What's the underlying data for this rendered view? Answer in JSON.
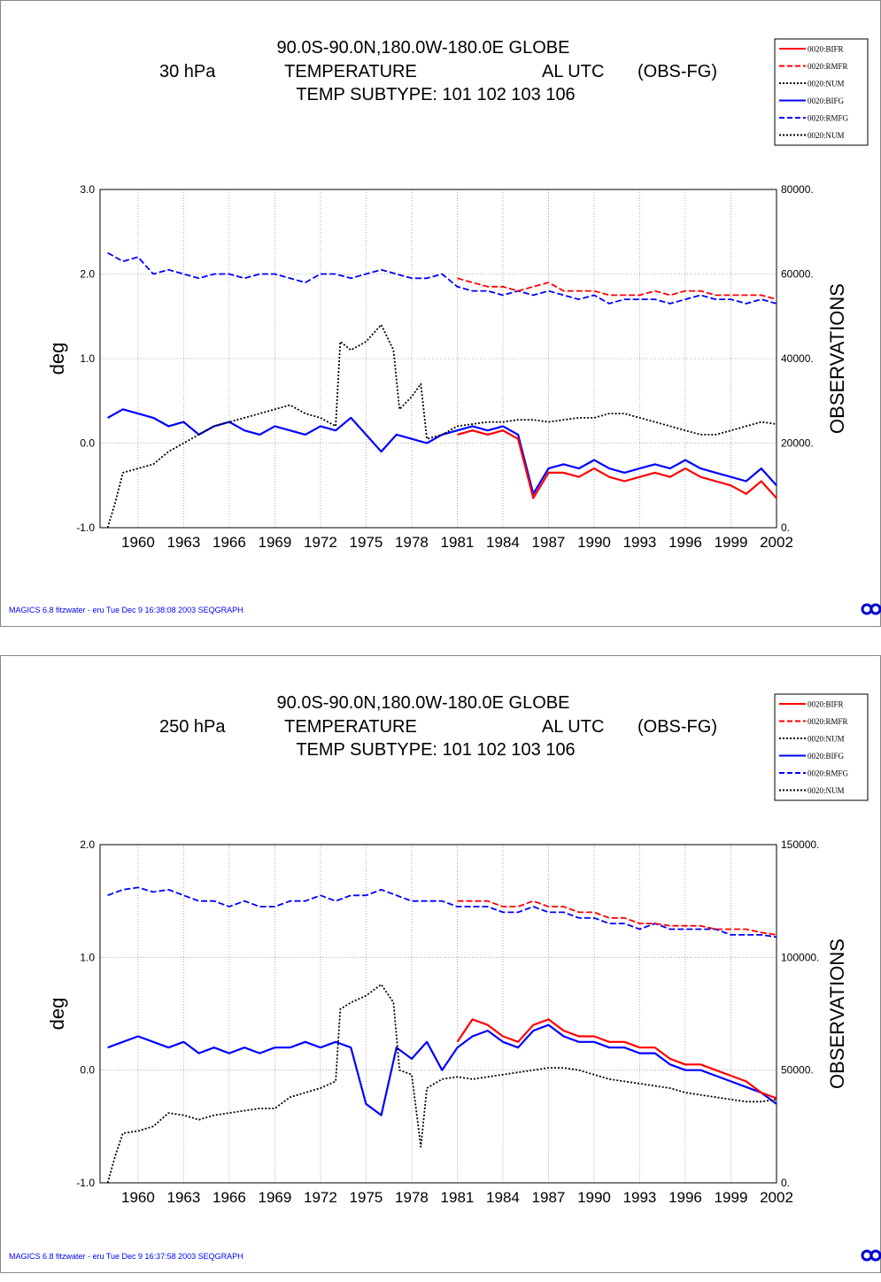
{
  "colors": {
    "bifr": "#ff0000",
    "rmfr": "#ff0000",
    "bifg": "#0000ff",
    "rmfg": "#0000ff",
    "num": "#000000",
    "footer": "#0000ff"
  },
  "icons": {
    "logo": "ecmwf-logo-icon"
  },
  "chart_data": [
    {
      "type": "line",
      "title_lines": [
        "90.0S-90.0N,180.0W-180.0E  GLOBE",
        "TEMPERATURE",
        "TEMP    SUBTYPE: 101 102 103 106"
      ],
      "level": "30 hPa",
      "time": "AL UTC",
      "diff": "(OBS-FG)",
      "ylabel": "deg",
      "ylabel_right": "OBSERVATIONS",
      "ylim": [
        -1.0,
        3.0
      ],
      "y_ticks": [
        "-1.0",
        "0.0",
        "1.0",
        "2.0",
        "3.0"
      ],
      "ylim_right": [
        0,
        80000
      ],
      "y_ticks_right": [
        "0.",
        "20000.",
        "40000.",
        "60000.",
        "80000."
      ],
      "xlim": [
        1957.5,
        2002
      ],
      "x_ticks": [
        "1960",
        "1963",
        "1966",
        "1969",
        "1972",
        "1975",
        "1978",
        "1981",
        "1984",
        "1987",
        "1990",
        "1993",
        "1996",
        "1999",
        "2002"
      ],
      "grid": "dotted",
      "legend_position": "top-right",
      "legend": [
        "0020:BIFR",
        "0020:RMFR",
        "0020:NUM",
        "0020:BIFG",
        "0020:RMFG",
        "0020:NUM"
      ],
      "footer": "MAGICS 6.8 fitzwater - eru Tue Dec  9 16:38:08 2003 SEQGRAPH",
      "series": [
        {
          "name": "0020:BIFG",
          "axis": "left",
          "style": "solid",
          "color": "bifg",
          "x": [
            1958,
            1959,
            1960,
            1961,
            1962,
            1963,
            1964,
            1965,
            1966,
            1967,
            1968,
            1969,
            1970,
            1971,
            1972,
            1973,
            1974,
            1975,
            1976,
            1977,
            1978,
            1979,
            1980,
            1981,
            1982,
            1983,
            1984,
            1985,
            1986,
            1987,
            1988,
            1989,
            1990,
            1991,
            1992,
            1993,
            1994,
            1995,
            1996,
            1997,
            1998,
            1999,
            2000,
            2001,
            2002
          ],
          "y": [
            0.3,
            0.4,
            0.35,
            0.3,
            0.2,
            0.25,
            0.1,
            0.2,
            0.25,
            0.15,
            0.1,
            0.2,
            0.15,
            0.1,
            0.2,
            0.15,
            0.3,
            0.1,
            -0.1,
            0.1,
            0.05,
            0.0,
            0.1,
            0.15,
            0.2,
            0.15,
            0.2,
            0.1,
            -0.6,
            -0.3,
            -0.25,
            -0.3,
            -0.2,
            -0.3,
            -0.35,
            -0.3,
            -0.25,
            -0.3,
            -0.2,
            -0.3,
            -0.35,
            -0.4,
            -0.45,
            -0.3,
            -0.5
          ]
        },
        {
          "name": "0020:BIFR",
          "axis": "left",
          "style": "solid",
          "color": "bifr",
          "x": [
            1981,
            1982,
            1983,
            1984,
            1985,
            1986,
            1987,
            1988,
            1989,
            1990,
            1991,
            1992,
            1993,
            1994,
            1995,
            1996,
            1997,
            1998,
            1999,
            2000,
            2001,
            2002
          ],
          "y": [
            0.1,
            0.15,
            0.1,
            0.15,
            0.05,
            -0.65,
            -0.35,
            -0.35,
            -0.4,
            -0.3,
            -0.4,
            -0.45,
            -0.4,
            -0.35,
            -0.4,
            -0.3,
            -0.4,
            -0.45,
            -0.5,
            -0.6,
            -0.45,
            -0.65
          ]
        },
        {
          "name": "0020:RMFG",
          "axis": "left",
          "style": "dashed",
          "color": "rmfg",
          "x": [
            1958,
            1959,
            1960,
            1961,
            1962,
            1963,
            1964,
            1965,
            1966,
            1967,
            1968,
            1969,
            1970,
            1971,
            1972,
            1973,
            1974,
            1975,
            1976,
            1977,
            1978,
            1979,
            1980,
            1981,
            1982,
            1983,
            1984,
            1985,
            1986,
            1987,
            1988,
            1989,
            1990,
            1991,
            1992,
            1993,
            1994,
            1995,
            1996,
            1997,
            1998,
            1999,
            2000,
            2001,
            2002
          ],
          "y": [
            2.25,
            2.15,
            2.2,
            2.0,
            2.05,
            2.0,
            1.95,
            2.0,
            2.0,
            1.95,
            2.0,
            2.0,
            1.95,
            1.9,
            2.0,
            2.0,
            1.95,
            2.0,
            2.05,
            2.0,
            1.95,
            1.95,
            2.0,
            1.85,
            1.8,
            1.8,
            1.75,
            1.8,
            1.75,
            1.8,
            1.75,
            1.7,
            1.75,
            1.65,
            1.7,
            1.7,
            1.7,
            1.65,
            1.7,
            1.75,
            1.7,
            1.7,
            1.65,
            1.7,
            1.65
          ]
        },
        {
          "name": "0020:RMFR",
          "axis": "left",
          "style": "dashed",
          "color": "rmfr",
          "x": [
            1981,
            1982,
            1983,
            1984,
            1985,
            1986,
            1987,
            1988,
            1989,
            1990,
            1991,
            1992,
            1993,
            1994,
            1995,
            1996,
            1997,
            1998,
            1999,
            2000,
            2001,
            2002
          ],
          "y": [
            1.95,
            1.9,
            1.85,
            1.85,
            1.8,
            1.85,
            1.9,
            1.8,
            1.8,
            1.8,
            1.75,
            1.75,
            1.75,
            1.8,
            1.75,
            1.8,
            1.8,
            1.75,
            1.75,
            1.75,
            1.75,
            1.7
          ]
        },
        {
          "name": "0020:NUM",
          "axis": "right",
          "style": "dotted",
          "color": "num",
          "x": [
            1958,
            1958.5,
            1959,
            1960,
            1961,
            1962,
            1963,
            1964,
            1965,
            1966,
            1967,
            1968,
            1969,
            1970,
            1971,
            1972,
            1973,
            1973.3,
            1974,
            1975,
            1976,
            1976.8,
            1977.2,
            1978,
            1978.6,
            1979,
            1980,
            1981,
            1982,
            1983,
            1984,
            1985,
            1986,
            1987,
            1988,
            1989,
            1990,
            1991,
            1992,
            1993,
            1994,
            1995,
            1996,
            1997,
            1998,
            1999,
            2000,
            2001,
            2002
          ],
          "y": [
            0,
            6000,
            13000,
            14000,
            15000,
            18000,
            20000,
            22000,
            24000,
            25000,
            26000,
            27000,
            28000,
            29000,
            27000,
            26000,
            24000,
            44000,
            42000,
            44000,
            48000,
            42000,
            28000,
            31000,
            34000,
            21000,
            22000,
            24000,
            24500,
            25000,
            25000,
            25500,
            25500,
            25000,
            25500,
            26000,
            26000,
            27000,
            27000,
            26000,
            25000,
            24000,
            23000,
            22000,
            22000,
            23000,
            24000,
            25000,
            24500
          ]
        }
      ]
    },
    {
      "type": "line",
      "title_lines": [
        "90.0S-90.0N,180.0W-180.0E  GLOBE",
        "TEMPERATURE",
        "TEMP    SUBTYPE: 101 102 103 106"
      ],
      "level": "250 hPa",
      "time": "AL UTC",
      "diff": "(OBS-FG)",
      "ylabel": "deg",
      "ylabel_right": "OBSERVATIONS",
      "ylim": [
        -1.0,
        2.0
      ],
      "y_ticks": [
        "-1.0",
        "0.0",
        "1.0",
        "2.0"
      ],
      "ylim_right": [
        0,
        150000
      ],
      "y_ticks_right": [
        "0.",
        "50000.",
        "100000.",
        "150000."
      ],
      "xlim": [
        1957.5,
        2002
      ],
      "x_ticks": [
        "1960",
        "1963",
        "1966",
        "1969",
        "1972",
        "1975",
        "1978",
        "1981",
        "1984",
        "1987",
        "1990",
        "1993",
        "1996",
        "1999",
        "2002"
      ],
      "grid": "dotted",
      "legend_position": "top-right",
      "legend": [
        "0020:BIFR",
        "0020:RMFR",
        "0020:NUM",
        "0020:BIFG",
        "0020:RMFG",
        "0020:NUM"
      ],
      "footer": "MAGICS 6.8 fitzwater - eru Tue Dec  9 16:37:58 2003 SEQGRAPH",
      "series": [
        {
          "name": "0020:BIFG",
          "axis": "left",
          "style": "solid",
          "color": "bifg",
          "x": [
            1958,
            1959,
            1960,
            1961,
            1962,
            1963,
            1964,
            1965,
            1966,
            1967,
            1968,
            1969,
            1970,
            1971,
            1972,
            1973,
            1974,
            1975,
            1976,
            1977,
            1978,
            1979,
            1980,
            1981,
            1982,
            1983,
            1984,
            1985,
            1986,
            1987,
            1988,
            1989,
            1990,
            1991,
            1992,
            1993,
            1994,
            1995,
            1996,
            1997,
            1998,
            1999,
            2000,
            2001,
            2002
          ],
          "y": [
            0.2,
            0.25,
            0.3,
            0.25,
            0.2,
            0.25,
            0.15,
            0.2,
            0.15,
            0.2,
            0.15,
            0.2,
            0.2,
            0.25,
            0.2,
            0.25,
            0.2,
            -0.3,
            -0.4,
            0.2,
            0.1,
            0.25,
            0.0,
            0.2,
            0.3,
            0.35,
            0.25,
            0.2,
            0.35,
            0.4,
            0.3,
            0.25,
            0.25,
            0.2,
            0.2,
            0.15,
            0.15,
            0.05,
            0.0,
            0.0,
            -0.05,
            -0.1,
            -0.15,
            -0.2,
            -0.3
          ]
        },
        {
          "name": "0020:BIFR",
          "axis": "left",
          "style": "solid",
          "color": "bifr",
          "x": [
            1981,
            1982,
            1983,
            1984,
            1985,
            1986,
            1987,
            1988,
            1989,
            1990,
            1991,
            1992,
            1993,
            1994,
            1995,
            1996,
            1997,
            1998,
            1999,
            2000,
            2001,
            2002
          ],
          "y": [
            0.25,
            0.45,
            0.4,
            0.3,
            0.25,
            0.4,
            0.45,
            0.35,
            0.3,
            0.3,
            0.25,
            0.25,
            0.2,
            0.2,
            0.1,
            0.05,
            0.05,
            0.0,
            -0.05,
            -0.1,
            -0.2,
            -0.25
          ]
        },
        {
          "name": "0020:RMFG",
          "axis": "left",
          "style": "dashed",
          "color": "rmfg",
          "x": [
            1958,
            1959,
            1960,
            1961,
            1962,
            1963,
            1964,
            1965,
            1966,
            1967,
            1968,
            1969,
            1970,
            1971,
            1972,
            1973,
            1974,
            1975,
            1976,
            1977,
            1978,
            1979,
            1980,
            1981,
            1982,
            1983,
            1984,
            1985,
            1986,
            1987,
            1988,
            1989,
            1990,
            1991,
            1992,
            1993,
            1994,
            1995,
            1996,
            1997,
            1998,
            1999,
            2000,
            2001,
            2002
          ],
          "y": [
            1.55,
            1.6,
            1.62,
            1.58,
            1.6,
            1.55,
            1.5,
            1.5,
            1.45,
            1.5,
            1.45,
            1.45,
            1.5,
            1.5,
            1.55,
            1.5,
            1.55,
            1.55,
            1.6,
            1.55,
            1.5,
            1.5,
            1.5,
            1.45,
            1.45,
            1.45,
            1.4,
            1.4,
            1.45,
            1.4,
            1.4,
            1.35,
            1.35,
            1.3,
            1.3,
            1.25,
            1.3,
            1.25,
            1.25,
            1.25,
            1.25,
            1.2,
            1.2,
            1.2,
            1.18
          ]
        },
        {
          "name": "0020:RMFR",
          "axis": "left",
          "style": "dashed",
          "color": "rmfr",
          "x": [
            1981,
            1982,
            1983,
            1984,
            1985,
            1986,
            1987,
            1988,
            1989,
            1990,
            1991,
            1992,
            1993,
            1994,
            1995,
            1996,
            1997,
            1998,
            1999,
            2000,
            2001,
            2002
          ],
          "y": [
            1.5,
            1.5,
            1.5,
            1.45,
            1.45,
            1.5,
            1.45,
            1.45,
            1.4,
            1.4,
            1.35,
            1.35,
            1.3,
            1.3,
            1.28,
            1.28,
            1.28,
            1.25,
            1.25,
            1.25,
            1.22,
            1.2
          ]
        },
        {
          "name": "0020:NUM",
          "axis": "right",
          "style": "dotted",
          "color": "num",
          "x": [
            1958,
            1958.5,
            1959,
            1960,
            1961,
            1962,
            1963,
            1964,
            1965,
            1966,
            1967,
            1968,
            1969,
            1970,
            1971,
            1972,
            1973,
            1973.3,
            1974,
            1975,
            1976,
            1976.8,
            1977.2,
            1978,
            1978.6,
            1979,
            1980,
            1981,
            1982,
            1983,
            1984,
            1985,
            1986,
            1987,
            1988,
            1989,
            1990,
            1991,
            1992,
            1993,
            1994,
            1995,
            1996,
            1997,
            1998,
            1999,
            2000,
            2001,
            2002
          ],
          "y": [
            0,
            12000,
            22000,
            23000,
            25000,
            31000,
            30000,
            28000,
            30000,
            31000,
            32000,
            33000,
            33000,
            38000,
            40000,
            42000,
            45000,
            77000,
            80000,
            83000,
            88000,
            80000,
            50000,
            48000,
            16000,
            42000,
            46000,
            47000,
            46000,
            47000,
            48000,
            49000,
            50000,
            51000,
            51000,
            50000,
            48000,
            46000,
            45000,
            44000,
            43000,
            42000,
            40000,
            39000,
            38000,
            37000,
            36000,
            36000,
            37000
          ]
        }
      ]
    }
  ]
}
